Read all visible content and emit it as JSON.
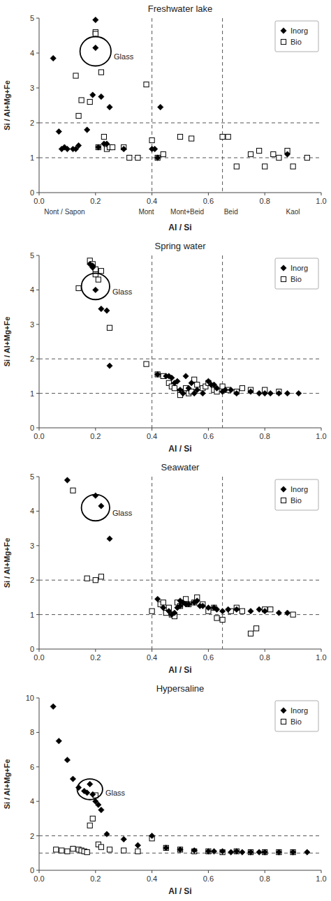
{
  "chart_data": [
    {
      "type": "scatter",
      "title": "Freshwater lake",
      "x_label": "Al / Si",
      "y_label": "Si / Al+Mg+Fe",
      "xlim": [
        0,
        1
      ],
      "ylim": [
        0,
        5
      ],
      "xticks": [
        {
          "value": 0,
          "label": "0.0"
        },
        0.2,
        0.4,
        0.6,
        0.8,
        {
          "value": 1.0,
          "label": "1.0"
        }
      ],
      "yticks": [
        0,
        1,
        2,
        3,
        4,
        5
      ],
      "legend": "upper right",
      "hlines": [
        1.0,
        2.0
      ],
      "vlines": [
        0.4,
        0.65
      ],
      "ellipse": {
        "cx": 0.2,
        "cy": 4.05,
        "rx": 0.055,
        "ry": 0.42
      },
      "annotations": [
        {
          "text": "Glass",
          "x": 0.265,
          "y": 3.9
        }
      ],
      "x_annotations": [
        {
          "text": "Nont / Sapon",
          "x": 0.09
        },
        {
          "text": "Mont",
          "x": 0.38
        },
        {
          "text": "Mont+Beid",
          "x": 0.525
        },
        {
          "text": "Beid",
          "x": 0.68
        },
        {
          "text": "Kaol",
          "x": 0.9
        }
      ],
      "series": [
        {
          "name": "Inorg",
          "marker": "diamond",
          "color": "#000000",
          "x": [
            0.05,
            0.07,
            0.08,
            0.09,
            0.1,
            0.12,
            0.13,
            0.14,
            0.17,
            0.19,
            0.2,
            0.2,
            0.21,
            0.22,
            0.23,
            0.24,
            0.25,
            0.3,
            0.4,
            0.41,
            0.42,
            0.43,
            0.88
          ],
          "values": [
            3.85,
            1.75,
            1.25,
            1.3,
            1.25,
            1.25,
            1.25,
            1.35,
            1.8,
            2.8,
            4.95,
            4.15,
            1.3,
            2.75,
            1.4,
            1.4,
            2.45,
            1.25,
            1.25,
            1.25,
            1.0,
            2.45,
            1.1
          ]
        },
        {
          "name": "Bio",
          "marker": "open-square",
          "color": "#000000",
          "x": [
            0.13,
            0.14,
            0.15,
            0.18,
            0.2,
            0.2,
            0.21,
            0.22,
            0.23,
            0.24,
            0.25,
            0.26,
            0.3,
            0.32,
            0.35,
            0.38,
            0.4,
            0.42,
            0.44,
            0.5,
            0.54,
            0.65,
            0.67,
            0.7,
            0.75,
            0.78,
            0.8,
            0.83,
            0.85,
            0.88,
            0.9,
            0.95
          ],
          "values": [
            3.35,
            2.2,
            2.65,
            2.6,
            4.6,
            4.55,
            1.3,
            3.45,
            1.6,
            1.25,
            1.3,
            1.3,
            1.3,
            1.0,
            1.0,
            3.1,
            1.5,
            1.0,
            1.1,
            1.6,
            1.55,
            1.6,
            1.6,
            0.75,
            1.1,
            1.2,
            0.75,
            1.1,
            1.0,
            1.2,
            0.75,
            1.0
          ]
        }
      ]
    },
    {
      "type": "scatter",
      "title": "Spring water",
      "x_label": "Al / Si",
      "y_label": "Si / Al+Mg+Fe",
      "xlim": [
        0,
        1
      ],
      "ylim": [
        0,
        5
      ],
      "xticks": [
        {
          "value": 0,
          "label": "0.0"
        },
        0.2,
        0.4,
        0.6,
        0.8,
        {
          "value": 1.0,
          "label": "1.0"
        }
      ],
      "yticks": [
        0,
        1,
        2,
        3,
        4,
        5
      ],
      "legend": "upper right",
      "hlines": [
        1.0,
        2.0
      ],
      "vlines": [
        0.4,
        0.65
      ],
      "ellipse": {
        "cx": 0.2,
        "cy": 4.1,
        "rx": 0.05,
        "ry": 0.38
      },
      "annotations": [
        {
          "text": "Glass",
          "x": 0.26,
          "y": 3.95
        }
      ],
      "series": [
        {
          "name": "Inorg",
          "marker": "diamond",
          "color": "#000000",
          "x": [
            0.18,
            0.19,
            0.19,
            0.2,
            0.22,
            0.24,
            0.25,
            0.42,
            0.45,
            0.46,
            0.47,
            0.48,
            0.49,
            0.5,
            0.51,
            0.52,
            0.53,
            0.54,
            0.55,
            0.56,
            0.58,
            0.6,
            0.61,
            0.62,
            0.63,
            0.65,
            0.66,
            0.68,
            0.7,
            0.75,
            0.78,
            0.8,
            0.82,
            0.85,
            0.88,
            0.92
          ],
          "values": [
            4.75,
            4.7,
            4.65,
            4.0,
            3.45,
            3.4,
            1.8,
            1.55,
            1.5,
            1.5,
            1.45,
            1.3,
            1.35,
            1.1,
            1.0,
            1.5,
            1.15,
            1.3,
            1.0,
            1.1,
            1.0,
            1.35,
            1.25,
            1.25,
            1.15,
            1.05,
            1.1,
            1.1,
            1.0,
            1.05,
            1.0,
            1.0,
            1.0,
            1.0,
            1.0,
            1.0
          ]
        },
        {
          "name": "Bio",
          "marker": "open-square",
          "color": "#000000",
          "x": [
            0.14,
            0.18,
            0.19,
            0.2,
            0.2,
            0.21,
            0.22,
            0.25,
            0.38,
            0.42,
            0.44,
            0.46,
            0.47,
            0.48,
            0.5,
            0.5,
            0.52,
            0.53,
            0.54,
            0.55,
            0.56,
            0.58,
            0.59,
            0.6,
            0.62,
            0.63,
            0.65,
            0.67,
            0.7,
            0.72,
            0.75,
            0.8,
            0.85
          ],
          "values": [
            4.05,
            4.85,
            4.75,
            4.6,
            4.45,
            4.3,
            4.55,
            2.9,
            1.85,
            1.55,
            1.5,
            1.3,
            1.2,
            1.15,
            1.05,
            0.95,
            1.15,
            1.0,
            1.05,
            1.4,
            1.25,
            1.15,
            1.2,
            1.3,
            1.1,
            1.05,
            1.2,
            1.1,
            1.05,
            1.15,
            1.1,
            1.1,
            1.05
          ]
        }
      ]
    },
    {
      "type": "scatter",
      "title": "Seawater",
      "x_label": "Al / Si",
      "y_label": "Si / Al+Mg+Fe",
      "xlim": [
        0,
        1
      ],
      "ylim": [
        0,
        5
      ],
      "xticks": [
        {
          "value": 0,
          "label": "0.0"
        },
        0.2,
        0.4,
        0.6,
        0.8,
        {
          "value": 1.0,
          "label": "1.0"
        }
      ],
      "yticks": [
        0,
        1,
        2,
        3,
        4,
        5
      ],
      "legend": "upper right",
      "hlines": [
        1.0,
        2.0
      ],
      "vlines": [
        0.4,
        0.65
      ],
      "ellipse": {
        "cx": 0.2,
        "cy": 4.1,
        "rx": 0.05,
        "ry": 0.38
      },
      "annotations": [
        {
          "text": "Glass",
          "x": 0.26,
          "y": 3.95
        }
      ],
      "series": [
        {
          "name": "Inorg",
          "marker": "diamond",
          "color": "#000000",
          "x": [
            0.1,
            0.2,
            0.22,
            0.25,
            0.42,
            0.44,
            0.46,
            0.47,
            0.48,
            0.49,
            0.5,
            0.5,
            0.51,
            0.52,
            0.53,
            0.55,
            0.56,
            0.57,
            0.58,
            0.6,
            0.62,
            0.63,
            0.65,
            0.67,
            0.7,
            0.75,
            0.78,
            0.8,
            0.85,
            0.88
          ],
          "values": [
            4.9,
            4.45,
            4.15,
            3.2,
            1.45,
            1.2,
            1.1,
            1.0,
            1.05,
            1.2,
            1.4,
            1.25,
            1.35,
            1.3,
            1.3,
            1.35,
            1.4,
            1.25,
            1.25,
            1.2,
            1.2,
            1.15,
            1.1,
            1.15,
            1.15,
            1.1,
            1.15,
            1.1,
            1.05,
            1.05
          ]
        },
        {
          "name": "Bio",
          "marker": "open-square",
          "color": "#000000",
          "x": [
            0.12,
            0.17,
            0.2,
            0.22,
            0.4,
            0.43,
            0.44,
            0.45,
            0.46,
            0.47,
            0.48,
            0.49,
            0.5,
            0.52,
            0.53,
            0.55,
            0.56,
            0.58,
            0.6,
            0.62,
            0.63,
            0.65,
            0.68,
            0.7,
            0.72,
            0.75,
            0.77,
            0.8,
            0.82,
            0.9
          ],
          "values": [
            4.6,
            2.05,
            2.0,
            2.1,
            1.1,
            1.3,
            1.35,
            1.05,
            1.2,
            1.0,
            0.95,
            1.35,
            1.25,
            1.45,
            1.3,
            1.35,
            1.5,
            1.3,
            1.1,
            1.2,
            0.9,
            0.85,
            1.1,
            1.2,
            1.1,
            0.45,
            0.6,
            1.15,
            1.15,
            1.0
          ]
        }
      ]
    },
    {
      "type": "scatter",
      "title": "Hypersaline",
      "x_label": "Al / Si",
      "y_label": "Si / Al+Mg+Fe",
      "xlim": [
        0,
        1
      ],
      "ylim": [
        0,
        10
      ],
      "xticks": [
        {
          "value": 0,
          "label": "0.0"
        },
        0.2,
        0.4,
        0.6,
        0.8,
        {
          "value": 1.0,
          "label": "1.0"
        }
      ],
      "yticks": [
        0,
        2,
        4,
        6,
        8,
        10
      ],
      "legend": "upper right",
      "hlines": [
        1.0,
        2.0
      ],
      "ellipse": {
        "cx": 0.18,
        "cy": 4.7,
        "rx": 0.045,
        "ry": 0.6
      },
      "annotations": [
        {
          "text": "Glass",
          "x": 0.235,
          "y": 4.5
        }
      ],
      "series": [
        {
          "name": "Inorg",
          "marker": "diamond",
          "color": "#000000",
          "x": [
            0.05,
            0.07,
            0.1,
            0.12,
            0.14,
            0.16,
            0.17,
            0.18,
            0.19,
            0.2,
            0.21,
            0.22,
            0.24,
            0.3,
            0.35,
            0.4,
            0.45,
            0.5,
            0.55,
            0.6,
            0.62,
            0.65,
            0.68,
            0.7,
            0.72,
            0.75,
            0.78,
            0.8,
            0.85,
            0.9,
            0.95
          ],
          "values": [
            9.5,
            7.5,
            6.4,
            5.3,
            4.8,
            4.6,
            4.5,
            5.0,
            4.4,
            4.0,
            3.8,
            3.5,
            2.1,
            1.8,
            1.45,
            2.0,
            1.3,
            1.2,
            1.15,
            1.1,
            1.1,
            1.1,
            1.05,
            1.1,
            1.05,
            1.05,
            1.05,
            1.05,
            1.05,
            1.05,
            1.05
          ]
        },
        {
          "name": "Bio",
          "marker": "open-square",
          "color": "#000000",
          "x": [
            0.06,
            0.08,
            0.1,
            0.12,
            0.14,
            0.15,
            0.16,
            0.17,
            0.18,
            0.19,
            0.2,
            0.21,
            0.22,
            0.25,
            0.3,
            0.35,
            0.4,
            0.45,
            0.5,
            0.55,
            0.6,
            0.65,
            0.7,
            0.75,
            0.8,
            0.85,
            0.9
          ],
          "values": [
            1.2,
            1.15,
            1.1,
            1.25,
            1.2,
            1.15,
            1.1,
            1.05,
            2.6,
            3.0,
            4.35,
            1.5,
            1.35,
            1.2,
            1.15,
            1.1,
            1.85,
            1.3,
            1.2,
            1.1,
            1.1,
            1.05,
            1.1,
            1.05,
            1.05,
            1.05,
            1.05
          ]
        }
      ]
    }
  ]
}
